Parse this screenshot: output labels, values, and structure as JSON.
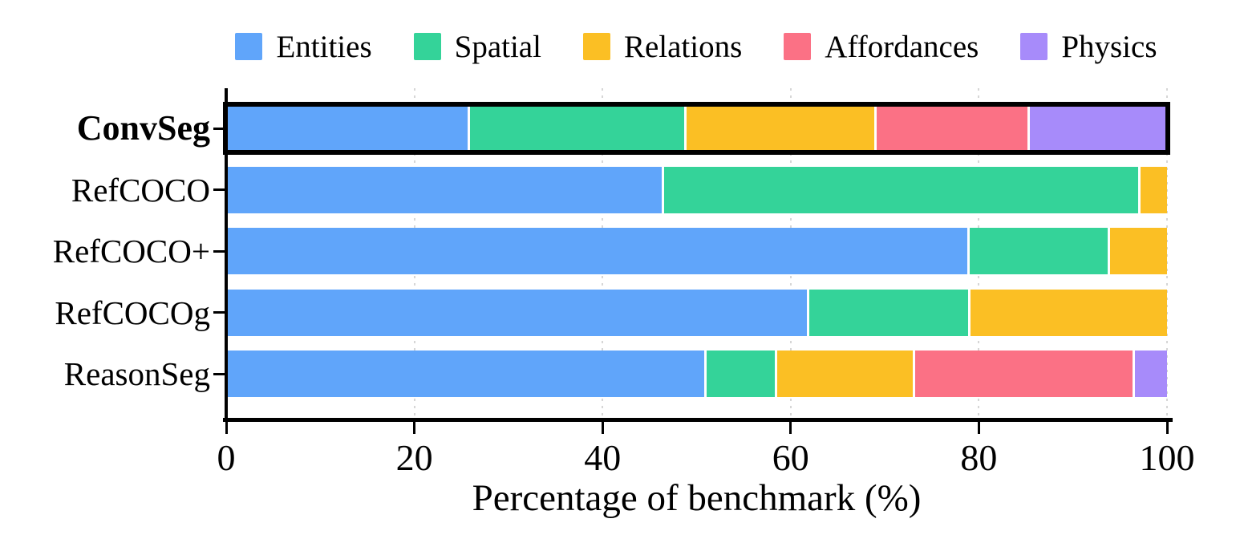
{
  "chart_data": {
    "type": "bar",
    "orientation": "horizontal",
    "stacked": true,
    "categories": [
      "ConvSeg",
      "RefCOCO",
      "RefCOCO+",
      "RefCOCOg",
      "ReasonSeg"
    ],
    "series": [
      {
        "name": "Entities",
        "color": "#60A5FA",
        "values": [
          25.7,
          46.3,
          78.8,
          61.7,
          50.8
        ]
      },
      {
        "name": "Spatial",
        "color": "#34D399",
        "values": [
          23.0,
          50.6,
          14.9,
          17.2,
          7.5
        ]
      },
      {
        "name": "Relations",
        "color": "#FBBF24",
        "values": [
          20.2,
          3.1,
          6.3,
          21.1,
          14.7
        ]
      },
      {
        "name": "Affordances",
        "color": "#FB7185",
        "values": [
          16.3,
          0,
          0,
          0,
          23.3
        ]
      },
      {
        "name": "Physics",
        "color": "#A78BFA",
        "values": [
          14.8,
          0,
          0,
          0,
          3.7
        ]
      }
    ],
    "title": "",
    "xlabel": "Percentage of benchmark (%)",
    "ylabel": "",
    "xlim": [
      0,
      100
    ],
    "xticks": [
      0,
      20,
      40,
      60,
      80,
      100
    ],
    "legend_position": "top",
    "grid": "vertical-dashed",
    "highlighted_category": "ConvSeg",
    "colors": {
      "axis": "#000000",
      "gridline": "#d6d6d6",
      "background": "#ffffff",
      "highlight_border": "#000000",
      "segment_separator": "#ffffff"
    }
  }
}
